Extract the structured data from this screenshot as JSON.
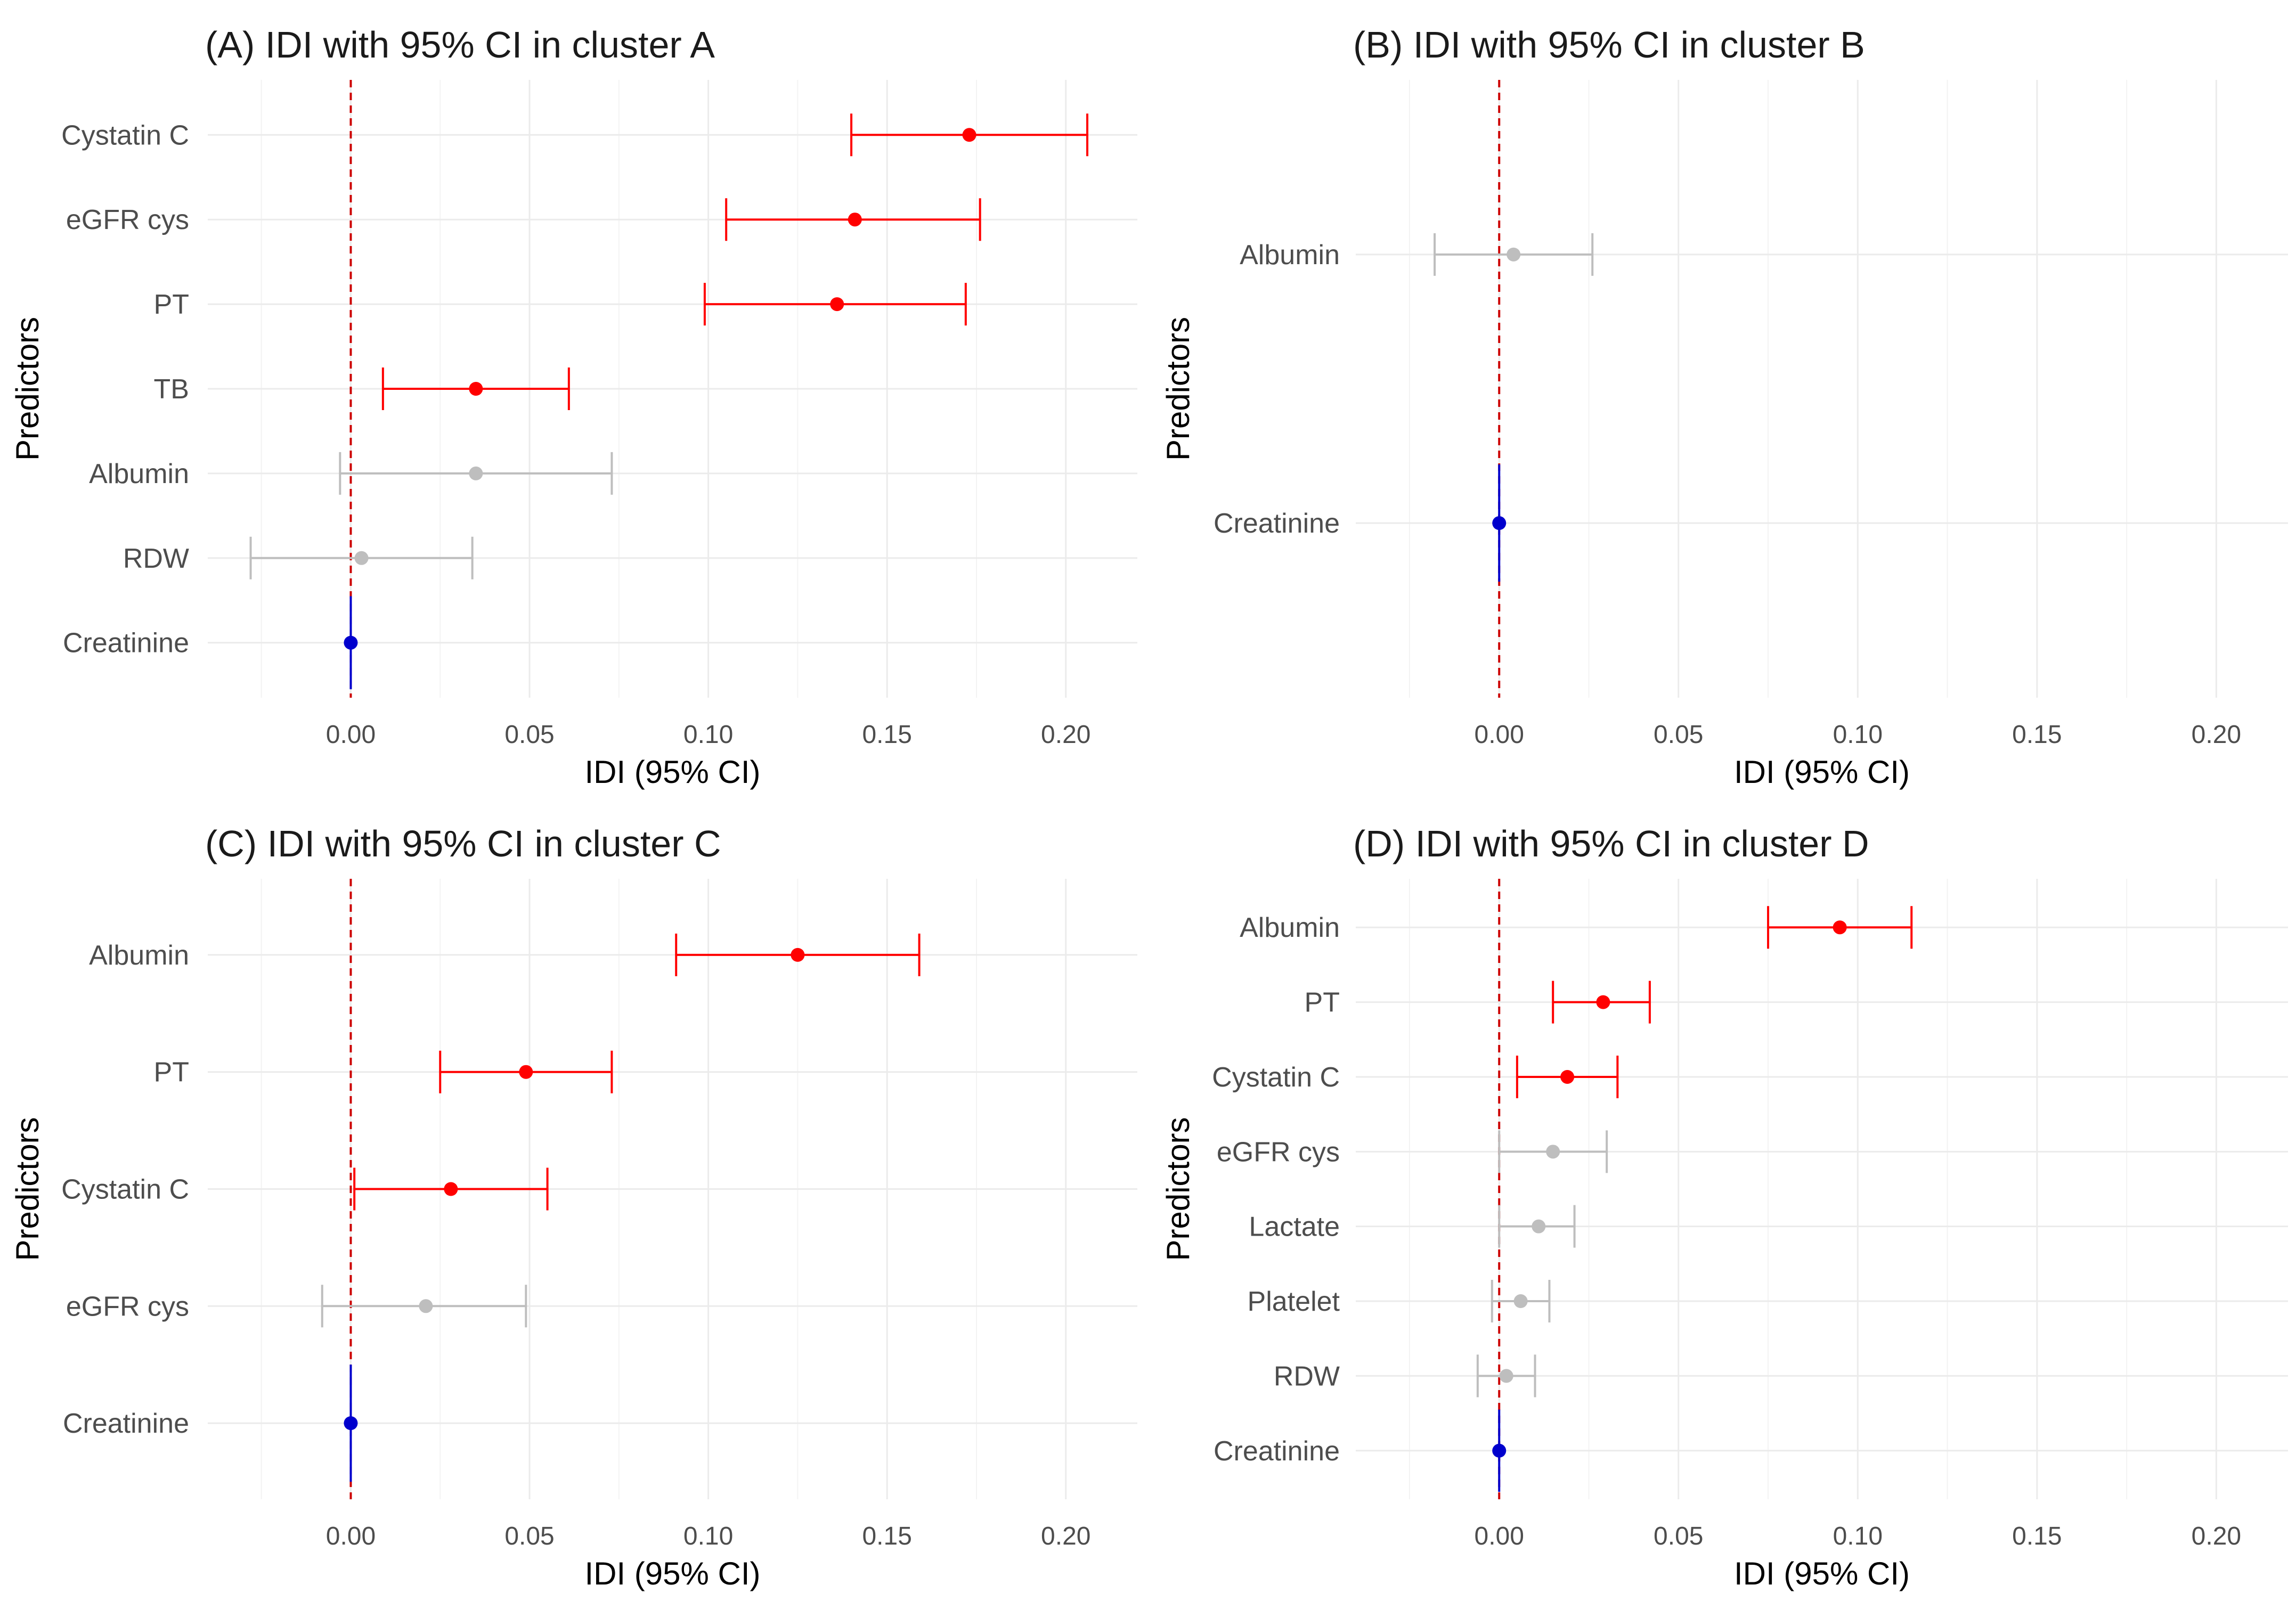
{
  "chart_data": [
    {
      "type": "forest",
      "panel": "A",
      "title": "(A) IDI with 95% CI in cluster A",
      "xlabel": "IDI (95% CI)",
      "ylabel": "Predictors",
      "xlim": [
        -0.04,
        0.22
      ],
      "xticks": [
        "0.00",
        "0.05",
        "0.10",
        "0.15",
        "0.20"
      ],
      "reference_line": 0.0,
      "rows": [
        {
          "label": "Cystatin C",
          "est": 0.173,
          "lo": 0.14,
          "hi": 0.206,
          "color": "#ff0000"
        },
        {
          "label": "eGFR cys",
          "est": 0.141,
          "lo": 0.105,
          "hi": 0.176,
          "color": "#ff0000"
        },
        {
          "label": "PT",
          "est": 0.136,
          "lo": 0.099,
          "hi": 0.172,
          "color": "#ff0000"
        },
        {
          "label": "TB",
          "est": 0.035,
          "lo": 0.009,
          "hi": 0.061,
          "color": "#ff0000"
        },
        {
          "label": "Albumin",
          "est": 0.035,
          "lo": -0.003,
          "hi": 0.073,
          "color": "#bebebe"
        },
        {
          "label": "RDW",
          "est": 0.003,
          "lo": -0.028,
          "hi": 0.034,
          "color": "#bebebe"
        },
        {
          "label": "Creatinine",
          "est": 0.0,
          "lo": 0.0,
          "hi": 0.0,
          "color": "#0000cd"
        }
      ]
    },
    {
      "type": "forest",
      "panel": "B",
      "title": "(B) IDI with 95% CI in cluster B",
      "xlabel": "IDI (95% CI)",
      "ylabel": "Predictors",
      "xlim": [
        -0.04,
        0.22
      ],
      "xticks": [
        "0.00",
        "0.05",
        "0.10",
        "0.15",
        "0.20"
      ],
      "reference_line": 0.0,
      "rows": [
        {
          "label": "Albumin",
          "est": 0.004,
          "lo": -0.018,
          "hi": 0.026,
          "color": "#bebebe"
        },
        {
          "label": "Creatinine",
          "est": 0.0,
          "lo": 0.0,
          "hi": 0.0,
          "color": "#0000cd"
        }
      ]
    },
    {
      "type": "forest",
      "panel": "C",
      "title": "(C) IDI with 95% CI in cluster C",
      "xlabel": "IDI (95% CI)",
      "ylabel": "Predictors",
      "xlim": [
        -0.04,
        0.22
      ],
      "xticks": [
        "0.00",
        "0.05",
        "0.10",
        "0.15",
        "0.20"
      ],
      "reference_line": 0.0,
      "rows": [
        {
          "label": "Albumin",
          "est": 0.125,
          "lo": 0.091,
          "hi": 0.159,
          "color": "#ff0000"
        },
        {
          "label": "PT",
          "est": 0.049,
          "lo": 0.025,
          "hi": 0.073,
          "color": "#ff0000"
        },
        {
          "label": "Cystatin C",
          "est": 0.028,
          "lo": 0.001,
          "hi": 0.055,
          "color": "#ff0000"
        },
        {
          "label": "eGFR cys",
          "est": 0.021,
          "lo": -0.008,
          "hi": 0.049,
          "color": "#bebebe"
        },
        {
          "label": "Creatinine",
          "est": 0.0,
          "lo": 0.0,
          "hi": 0.0,
          "color": "#0000cd"
        }
      ]
    },
    {
      "type": "forest",
      "panel": "D",
      "title": "(D) IDI with 95% CI in cluster D",
      "xlabel": "IDI (95% CI)",
      "ylabel": "Predictors",
      "xlim": [
        -0.04,
        0.22
      ],
      "xticks": [
        "0.00",
        "0.05",
        "0.10",
        "0.15",
        "0.20"
      ],
      "reference_line": 0.0,
      "rows": [
        {
          "label": "Albumin",
          "est": 0.095,
          "lo": 0.075,
          "hi": 0.115,
          "color": "#ff0000"
        },
        {
          "label": "PT",
          "est": 0.029,
          "lo": 0.015,
          "hi": 0.042,
          "color": "#ff0000"
        },
        {
          "label": "Cystatin C",
          "est": 0.019,
          "lo": 0.005,
          "hi": 0.033,
          "color": "#ff0000"
        },
        {
          "label": "eGFR cys",
          "est": 0.015,
          "lo": 0.0,
          "hi": 0.03,
          "color": "#bebebe"
        },
        {
          "label": "Lactate",
          "est": 0.011,
          "lo": 0.0,
          "hi": 0.021,
          "color": "#bebebe"
        },
        {
          "label": "Platelet",
          "est": 0.006,
          "lo": -0.002,
          "hi": 0.014,
          "color": "#bebebe"
        },
        {
          "label": "RDW",
          "est": 0.002,
          "lo": -0.006,
          "hi": 0.01,
          "color": "#bebebe"
        },
        {
          "label": "Creatinine",
          "est": 0.0,
          "lo": 0.0,
          "hi": 0.0,
          "color": "#0000cd"
        }
      ]
    }
  ],
  "colors": {
    "significant": "#ff0000",
    "not_significant": "#bebebe",
    "reference": "#0000cd",
    "ref_line": "#cc0000"
  }
}
